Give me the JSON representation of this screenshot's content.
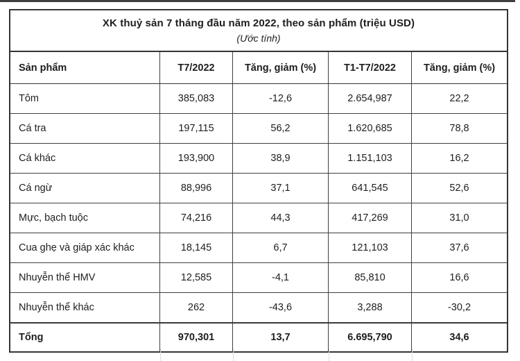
{
  "chart_data": {
    "type": "table",
    "title": "XK thuỷ sản 7 tháng đầu năm 2022, theo sản phẩm (triệu USD)",
    "subtitle": "(Ước tính)",
    "columns": [
      "Sản phẩm",
      "T7/2022",
      "Tăng, giảm (%)",
      "T1-T7/2022",
      "Tăng, giảm (%)"
    ],
    "rows": [
      [
        "Tôm",
        "385,083",
        "-12,6",
        "2.654,987",
        "22,2"
      ],
      [
        "Cá tra",
        "197,115",
        "56,2",
        "1.620,685",
        "78,8"
      ],
      [
        "Cá khác",
        "193,900",
        "38,9",
        "1.151,103",
        "16,2"
      ],
      [
        "Cá ngừ",
        "88,996",
        "37,1",
        "641,545",
        "52,6"
      ],
      [
        "Mực, bạch tuộc",
        "74,216",
        "44,3",
        "417,269",
        "31,0"
      ],
      [
        "Cua ghẹ và giáp xác khác",
        "18,145",
        "6,7",
        "121,103",
        "37,6"
      ],
      [
        "Nhuyễn thể HMV",
        "12,585",
        "-4,1",
        "85,810",
        "16,6"
      ],
      [
        "Nhuyễn thể khác",
        "262",
        "-43,6",
        "3,288",
        "-30,2"
      ]
    ],
    "total_row": [
      "Tổng",
      "970,301",
      "13,7",
      "6.695,790",
      "34,6"
    ]
  },
  "colors": {
    "border": "#343434",
    "text": "#1e1e1e",
    "background": "#ffffff"
  }
}
